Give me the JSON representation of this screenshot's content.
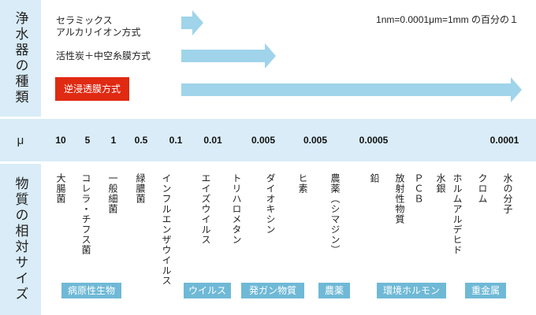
{
  "side_labels": {
    "types": "浄水器の種類",
    "mu": "μ",
    "substances": "物質の相対サイズ"
  },
  "unit_note": "1nm=0.0001μm=1mm の百分の１",
  "methods": {
    "ceramic_line1": "セラミックス",
    "ceramic_line2": "アルカリイオン方式",
    "carbon": "活性炭＋中空糸膜方式",
    "ro": "逆浸透膜方式"
  },
  "mu_values": [
    "10",
    "5",
    "1",
    "0.5",
    "0.1",
    "0.01",
    "0.005",
    "0.005",
    "0.0005",
    "0.0001"
  ],
  "substances": {
    "s1": "大腸菌",
    "s2a": "コレラ・",
    "s2b": "チフス菌",
    "s3": "一般細菌",
    "s4": "緑膿菌",
    "s5a": "インフルエンザ",
    "s5b": "ウイルス",
    "s6": "エイズウイルス",
    "s7": "トリハロメタン",
    "s8": "ダイオキシン",
    "s9": "ヒ素",
    "s10": "農薬（シマジン）",
    "s11": "鉛",
    "s12": "放射性物質",
    "s13": "ＰＣＢ",
    "s14": "水銀",
    "s15": "ホルムアルデヒド",
    "s16": "クロム",
    "s17": "水の分子"
  },
  "categories": [
    "病原性生物",
    "ウイルス",
    "発ガン物質",
    "農薬",
    "環境ホルモン",
    "重金属"
  ],
  "colors": {
    "side_bg": "#d9ecf7",
    "arrow": "#9fd4ea",
    "ro_box": "#e02a12",
    "tag": "#6fb9d6"
  }
}
